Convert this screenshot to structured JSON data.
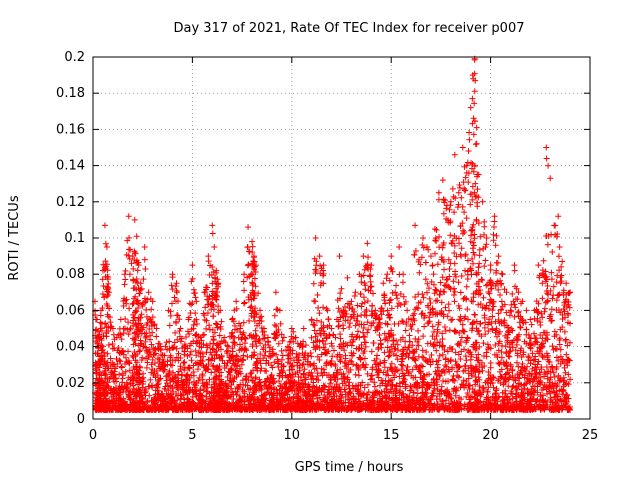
{
  "chart_data": {
    "type": "scatter",
    "title": "Day 317 of 2021, Rate Of TEC Index for receiver p007",
    "xlabel": "GPS time / hours",
    "ylabel": "ROTI / TECUs",
    "xlim": [
      0,
      25
    ],
    "ylim": [
      0,
      0.2
    ],
    "xticks": [
      0,
      5,
      10,
      15,
      20,
      25
    ],
    "yticks": [
      0,
      0.02,
      0.04,
      0.06,
      0.08,
      0.1,
      0.12,
      0.14,
      0.16,
      0.18,
      0.2
    ],
    "grid": true,
    "marker": "+",
    "color": "#ff0000",
    "series": [
      {
        "x": [
          0.1,
          0.2,
          0.3,
          0.4,
          0.5,
          0.6,
          0.7,
          0.8,
          1.0,
          1.2,
          1.4,
          1.6,
          1.8,
          2.0,
          2.1,
          2.2,
          2.3,
          2.4,
          2.6,
          2.8,
          3.0,
          3.2,
          3.4,
          3.6,
          3.8,
          4.0,
          4.2,
          4.4,
          4.6,
          4.8,
          5.0,
          5.2,
          5.4,
          5.6,
          5.8,
          6.0,
          6.1,
          6.2,
          6.3,
          6.4,
          6.6,
          6.8,
          7.0,
          7.2,
          7.4,
          7.6,
          7.8,
          8.0,
          8.1,
          8.2,
          8.4,
          8.6,
          8.8,
          9.0,
          9.2,
          9.4,
          9.6,
          9.8,
          10.0,
          10.2,
          10.4,
          10.6,
          10.8,
          11.0,
          11.2,
          11.4,
          11.6,
          11.8,
          12.0,
          12.2,
          12.4,
          12.6,
          12.8,
          13.0,
          13.2,
          13.4,
          13.6,
          13.8,
          14.0,
          14.2,
          14.4,
          14.6,
          14.8,
          15.0,
          15.2,
          15.4,
          15.6,
          15.8,
          16.0,
          16.2,
          16.4,
          16.6,
          16.8,
          17.0,
          17.2,
          17.4,
          17.6,
          17.8,
          18.0,
          18.2,
          18.4,
          18.6,
          18.8,
          19.0,
          19.1,
          19.2,
          19.3,
          19.4,
          19.6,
          19.8,
          20.0,
          20.2,
          20.4,
          20.6,
          20.8,
          21.0,
          21.2,
          21.4,
          21.6,
          21.8,
          22.0,
          22.2,
          22.4,
          22.6,
          22.8,
          23.0,
          23.2,
          23.4,
          23.6,
          23.8,
          24.0
        ],
        "y": [
          0.065,
          0.055,
          0.045,
          0.06,
          0.082,
          0.107,
          0.095,
          0.07,
          0.05,
          0.045,
          0.055,
          0.08,
          0.112,
          0.09,
          0.11,
          0.101,
          0.085,
          0.075,
          0.095,
          0.07,
          0.065,
          0.05,
          0.04,
          0.035,
          0.06,
          0.08,
          0.075,
          0.05,
          0.04,
          0.055,
          0.085,
          0.065,
          0.045,
          0.07,
          0.09,
          0.107,
          0.095,
          0.082,
          0.075,
          0.06,
          0.045,
          0.04,
          0.055,
          0.065,
          0.05,
          0.08,
          0.106,
          0.098,
          0.09,
          0.085,
          0.06,
          0.05,
          0.045,
          0.035,
          0.07,
          0.06,
          0.045,
          0.04,
          0.05,
          0.045,
          0.04,
          0.05,
          0.035,
          0.055,
          0.1,
          0.09,
          0.085,
          0.06,
          0.05,
          0.045,
          0.09,
          0.06,
          0.078,
          0.065,
          0.07,
          0.08,
          0.09,
          0.097,
          0.085,
          0.06,
          0.055,
          0.075,
          0.08,
          0.09,
          0.07,
          0.095,
          0.08,
          0.06,
          0.055,
          0.107,
          0.088,
          0.1,
          0.095,
          0.09,
          0.105,
          0.125,
          0.132,
          0.118,
          0.12,
          0.146,
          0.125,
          0.15,
          0.14,
          0.172,
          0.19,
          0.199,
          0.161,
          0.135,
          0.12,
          0.1,
          0.085,
          0.112,
          0.09,
          0.08,
          0.07,
          0.06,
          0.085,
          0.07,
          0.065,
          0.06,
          0.055,
          0.06,
          0.085,
          0.075,
          0.15,
          0.133,
          0.107,
          0.112,
          0.087,
          0.075,
          0.07
        ],
        "note_values": "upper envelope of the dense point cloud (visible peaks); the bulk of points fall between 0.005 and 0.04"
      }
    ]
  }
}
